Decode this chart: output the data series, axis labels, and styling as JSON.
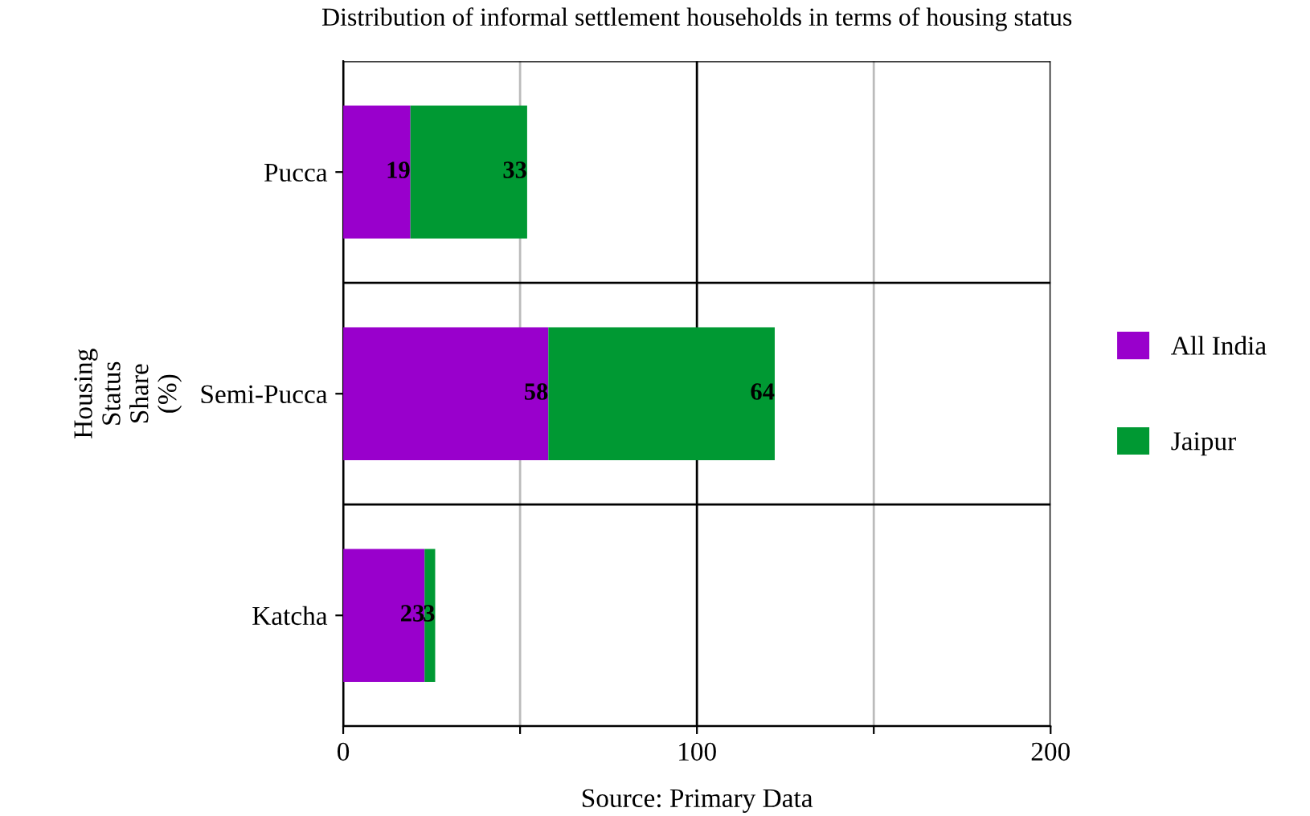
{
  "chart_data": {
    "type": "bar",
    "orientation": "horizontal",
    "stacked": true,
    "title": "Distribution of informal settlement households in terms of housing status",
    "xlabel": "Source: Primary Data",
    "ylabel": "Housing Status Share (%)",
    "categories": [
      "Pucca",
      "Semi-Pucca",
      "Katcha"
    ],
    "series": [
      {
        "name": "All India",
        "color": "#9900cc",
        "values": [
          19,
          58,
          23
        ]
      },
      {
        "name": "Jaipur",
        "color": "#009933",
        "values": [
          33,
          64,
          3
        ]
      }
    ],
    "xlim": [
      0,
      200
    ],
    "xticks": [
      0,
      {
        "value": 50,
        "label": null
      },
      100,
      {
        "value": 150,
        "label": null
      },
      200
    ],
    "grid": true,
    "legend": "right",
    "data_labels": true
  }
}
